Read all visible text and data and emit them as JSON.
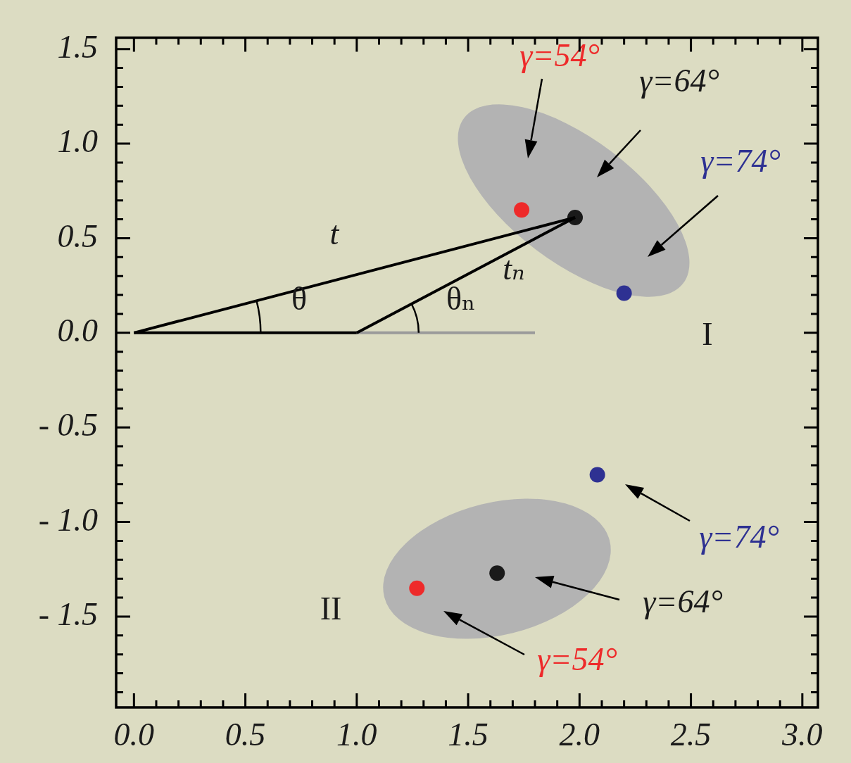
{
  "chart_data": {
    "type": "scatter",
    "xlim": [
      -0.08,
      3.07
    ],
    "ylim": [
      -1.98,
      1.56
    ],
    "grid": false,
    "marker": "circle",
    "xticks": [
      {
        "value": 0,
        "label": "0.0"
      },
      {
        "value": 0.1,
        "label": null
      },
      {
        "value": 0.2,
        "label": null
      },
      {
        "value": 0.3,
        "label": null
      },
      {
        "value": 0.4,
        "label": null
      },
      {
        "value": 0.5,
        "label": "0.5"
      },
      {
        "value": 0.6,
        "label": null
      },
      {
        "value": 0.7,
        "label": null
      },
      {
        "value": 0.8,
        "label": null
      },
      {
        "value": 0.9,
        "label": null
      },
      {
        "value": 1,
        "label": "1.0"
      },
      {
        "value": 1.1,
        "label": null
      },
      {
        "value": 1.2,
        "label": null
      },
      {
        "value": 1.3,
        "label": null
      },
      {
        "value": 1.4,
        "label": null
      },
      {
        "value": 1.5,
        "label": "1.5"
      },
      {
        "value": 1.6,
        "label": null
      },
      {
        "value": 1.7,
        "label": null
      },
      {
        "value": 1.8,
        "label": null
      },
      {
        "value": 1.9,
        "label": null
      },
      {
        "value": 2,
        "label": "2.0"
      },
      {
        "value": 2.1,
        "label": null
      },
      {
        "value": 2.2,
        "label": null
      },
      {
        "value": 2.3,
        "label": null
      },
      {
        "value": 2.4,
        "label": null
      },
      {
        "value": 2.5,
        "label": "2.5"
      },
      {
        "value": 2.6,
        "label": null
      },
      {
        "value": 2.7,
        "label": null
      },
      {
        "value": 2.8,
        "label": null
      },
      {
        "value": 2.9,
        "label": null
      },
      {
        "value": 3,
        "label": "3.0"
      }
    ],
    "yticks": [
      {
        "value": -1.9,
        "label": null
      },
      {
        "value": -1.8,
        "label": null
      },
      {
        "value": -1.7,
        "label": null
      },
      {
        "value": -1.6,
        "label": null
      },
      {
        "value": -1.5,
        "label": "- 1.5"
      },
      {
        "value": -1.4,
        "label": null
      },
      {
        "value": -1.3,
        "label": null
      },
      {
        "value": -1.2,
        "label": null
      },
      {
        "value": -1.1,
        "label": null
      },
      {
        "value": -1,
        "label": "- 1.0"
      },
      {
        "value": -0.9,
        "label": null
      },
      {
        "value": -0.8,
        "label": null
      },
      {
        "value": -0.7,
        "label": null
      },
      {
        "value": -0.6,
        "label": null
      },
      {
        "value": -0.5,
        "label": "- 0.5"
      },
      {
        "value": -0.4,
        "label": null
      },
      {
        "value": -0.3,
        "label": null
      },
      {
        "value": -0.2,
        "label": null
      },
      {
        "value": -0.1,
        "label": null
      },
      {
        "value": 0,
        "label": "0.0"
      },
      {
        "value": 0.1,
        "label": null
      },
      {
        "value": 0.2,
        "label": null
      },
      {
        "value": 0.3,
        "label": null
      },
      {
        "value": 0.4,
        "label": null
      },
      {
        "value": 0.5,
        "label": "0.5"
      },
      {
        "value": 0.6,
        "label": null
      },
      {
        "value": 0.7,
        "label": null
      },
      {
        "value": 0.8,
        "label": null
      },
      {
        "value": 0.9,
        "label": null
      },
      {
        "value": 1,
        "label": "1.0"
      },
      {
        "value": 1.1,
        "label": null
      },
      {
        "value": 1.2,
        "label": null
      },
      {
        "value": 1.3,
        "label": null
      },
      {
        "value": 1.4,
        "label": null
      },
      {
        "value": 1.5,
        "label": "1.5"
      }
    ],
    "series": [
      {
        "type": "line",
        "color": "#000000",
        "marker": "none",
        "x": [
          0,
          1.98
        ],
        "values": [
          0,
          0.61
        ]
      },
      {
        "type": "line",
        "color": "#000000",
        "marker": "none",
        "x": [
          1,
          1.98
        ],
        "values": [
          0,
          0.61
        ]
      },
      {
        "type": "line",
        "color": "#000000",
        "marker": "none",
        "x": [
          0,
          1
        ],
        "values": [
          0,
          0
        ]
      },
      {
        "type": "line",
        "color": "#9a9a9a",
        "marker": "none",
        "x": [
          1,
          1.8
        ],
        "values": [
          0,
          0
        ]
      },
      {
        "type": "scatter",
        "color": "#ee2a2a",
        "x": [
          1.74,
          1.27
        ],
        "values": [
          0.65,
          -1.35
        ]
      },
      {
        "type": "scatter",
        "color": "#1a1a1a",
        "x": [
          1.98,
          1.63
        ],
        "values": [
          0.61,
          -1.27
        ]
      },
      {
        "type": "scatter",
        "color": "#2e3192",
        "x": [
          2.2,
          2.08
        ],
        "values": [
          0.21,
          -0.75
        ]
      }
    ],
    "annotations": [
      "γ=54°",
      "γ=64°",
      "γ=74°",
      "γ=74°",
      "γ=64°",
      "γ=54°",
      "t",
      "tₙ",
      "θ",
      "θₙ",
      "I",
      "II"
    ]
  }
}
